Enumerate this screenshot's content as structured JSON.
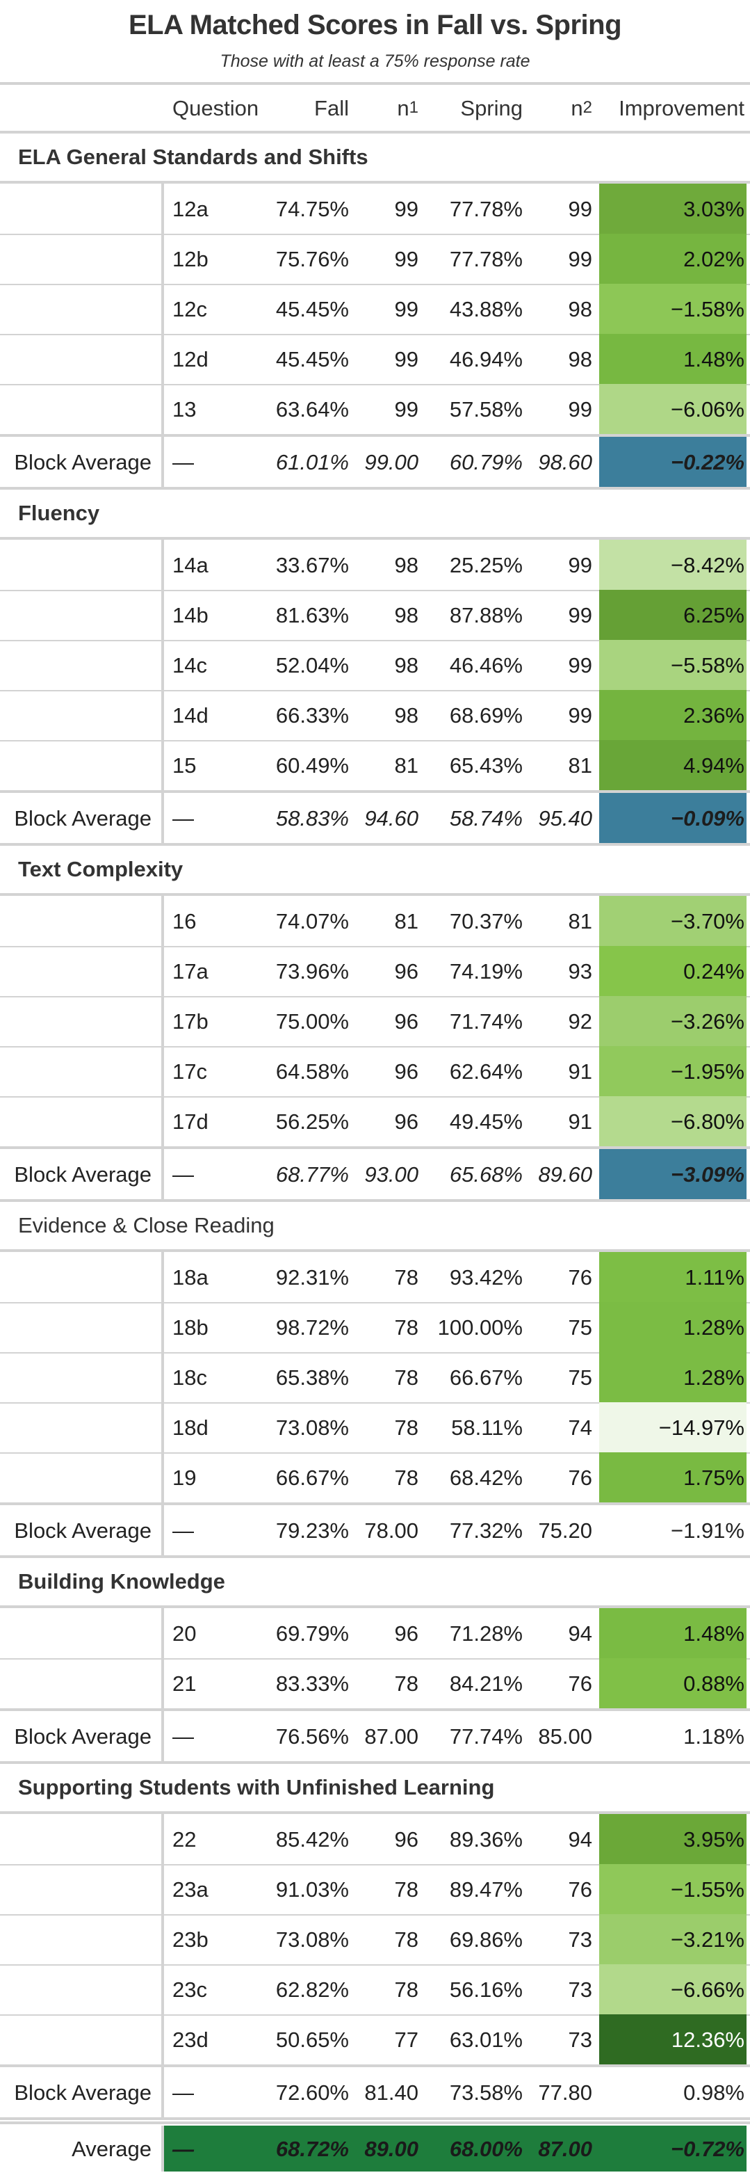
{
  "title": "ELA Matched Scores in Fall vs. Spring",
  "subtitle": "Those with at least a 75% response rate",
  "headers": {
    "question": "Question",
    "fall": "Fall",
    "n1_base": "n",
    "n1_sub": "1",
    "spring": "Spring",
    "n2_base": "n",
    "n2_sub": "2",
    "improvement": "Improvement"
  },
  "groups": [
    {
      "name": "ELA General Standards and Shifts",
      "bold": true,
      "rows": [
        {
          "question": "12a",
          "fall": "74.75%",
          "n1": "99",
          "spring": "77.78%",
          "n2": "99",
          "improvement": "3.03%",
          "color": "#6FAA3B",
          "text_color": "#111111"
        },
        {
          "question": "12b",
          "fall": "75.76%",
          "n1": "99",
          "spring": "77.78%",
          "n2": "99",
          "improvement": "2.02%",
          "color": "#76B540",
          "text_color": "#111111"
        },
        {
          "question": "12c",
          "fall": "45.45%",
          "n1": "99",
          "spring": "43.88%",
          "n2": "98",
          "improvement": "−1.58%",
          "color": "#8DC756",
          "text_color": "#111111"
        },
        {
          "question": "12d",
          "fall": "45.45%",
          "n1": "99",
          "spring": "46.94%",
          "n2": "98",
          "improvement": "1.48%",
          "color": "#77B841",
          "text_color": "#111111"
        },
        {
          "question": "13",
          "fall": "63.64%",
          "n1": "99",
          "spring": "57.58%",
          "n2": "99",
          "improvement": "−6.06%",
          "color": "#AFD787",
          "text_color": "#111111"
        }
      ],
      "avg": {
        "label": "Block Average",
        "question": "—",
        "fall": "61.01%",
        "n1": "99.00",
        "spring": "60.79%",
        "n2": "98.60",
        "improvement": "−0.22%",
        "color": "#3C7E9B",
        "text_color": "#1d1d1d",
        "style": "bi"
      }
    },
    {
      "name": "Fluency",
      "bold": true,
      "rows": [
        {
          "question": "14a",
          "fall": "33.67%",
          "n1": "98",
          "spring": "25.25%",
          "n2": "99",
          "improvement": "−8.42%",
          "color": "#C3E1A5",
          "text_color": "#111111"
        },
        {
          "question": "14b",
          "fall": "81.63%",
          "n1": "98",
          "spring": "87.88%",
          "n2": "99",
          "improvement": "6.25%",
          "color": "#65A035",
          "text_color": "#111111"
        },
        {
          "question": "14c",
          "fall": "52.04%",
          "n1": "98",
          "spring": "46.46%",
          "n2": "99",
          "improvement": "−5.58%",
          "color": "#A9D47F",
          "text_color": "#111111"
        },
        {
          "question": "14d",
          "fall": "66.33%",
          "n1": "98",
          "spring": "68.69%",
          "n2": "99",
          "improvement": "2.36%",
          "color": "#74B43F",
          "text_color": "#111111"
        },
        {
          "question": "15",
          "fall": "60.49%",
          "n1": "81",
          "spring": "65.43%",
          "n2": "81",
          "improvement": "4.94%",
          "color": "#69A638",
          "text_color": "#111111"
        }
      ],
      "avg": {
        "label": "Block Average",
        "question": "—",
        "fall": "58.83%",
        "n1": "94.60",
        "spring": "58.74%",
        "n2": "95.40",
        "improvement": "−0.09%",
        "color": "#3C7E9B",
        "text_color": "#1d1d1d",
        "style": "bi"
      }
    },
    {
      "name": "Text Complexity",
      "bold": true,
      "rows": [
        {
          "question": "16",
          "fall": "74.07%",
          "n1": "81",
          "spring": "70.37%",
          "n2": "81",
          "improvement": "−3.70%",
          "color": "#A1D074",
          "text_color": "#111111"
        },
        {
          "question": "17a",
          "fall": "73.96%",
          "n1": "96",
          "spring": "74.19%",
          "n2": "93",
          "improvement": "0.24%",
          "color": "#86C54A",
          "text_color": "#111111"
        },
        {
          "question": "17b",
          "fall": "75.00%",
          "n1": "96",
          "spring": "71.74%",
          "n2": "92",
          "improvement": "−3.26%",
          "color": "#9CCD6D",
          "text_color": "#111111"
        },
        {
          "question": "17c",
          "fall": "64.58%",
          "n1": "96",
          "spring": "62.64%",
          "n2": "91",
          "improvement": "−1.95%",
          "color": "#91C95C",
          "text_color": "#111111"
        },
        {
          "question": "17d",
          "fall": "56.25%",
          "n1": "96",
          "spring": "49.45%",
          "n2": "91",
          "improvement": "−6.80%",
          "color": "#B4DA8E",
          "text_color": "#111111"
        }
      ],
      "avg": {
        "label": "Block Average",
        "question": "—",
        "fall": "68.77%",
        "n1": "93.00",
        "spring": "65.68%",
        "n2": "89.60",
        "improvement": "−3.09%",
        "color": "#3C7E9B",
        "text_color": "#1d1d1d",
        "style": "bi"
      }
    },
    {
      "name": "Evidence & Close Reading",
      "bold": false,
      "rows": [
        {
          "question": "18a",
          "fall": "92.31%",
          "n1": "78",
          "spring": "93.42%",
          "n2": "76",
          "improvement": "1.11%",
          "color": "#7DBE45",
          "text_color": "#111111"
        },
        {
          "question": "18b",
          "fall": "98.72%",
          "n1": "78",
          "spring": "100.00%",
          "n2": "75",
          "improvement": "1.28%",
          "color": "#7BBC44",
          "text_color": "#111111"
        },
        {
          "question": "18c",
          "fall": "65.38%",
          "n1": "78",
          "spring": "66.67%",
          "n2": "75",
          "improvement": "1.28%",
          "color": "#7BBC44",
          "text_color": "#111111"
        },
        {
          "question": "18d",
          "fall": "73.08%",
          "n1": "78",
          "spring": "58.11%",
          "n2": "74",
          "improvement": "−14.97%",
          "color": "#EFF7E8",
          "text_color": "#111111"
        },
        {
          "question": "19",
          "fall": "66.67%",
          "n1": "78",
          "spring": "68.42%",
          "n2": "76",
          "improvement": "1.75%",
          "color": "#79BA42",
          "text_color": "#111111"
        }
      ],
      "avg": {
        "label": "Block Average",
        "question": "—",
        "fall": "79.23%",
        "n1": "78.00",
        "spring": "77.32%",
        "n2": "75.20",
        "improvement": "−1.91%",
        "color": "#ffffff",
        "text_color": "#222222",
        "style": "plain"
      }
    },
    {
      "name": "Building Knowledge",
      "bold": true,
      "rows": [
        {
          "question": "20",
          "fall": "69.79%",
          "n1": "96",
          "spring": "71.28%",
          "n2": "94",
          "improvement": "1.48%",
          "color": "#7ABB43",
          "text_color": "#111111"
        },
        {
          "question": "21",
          "fall": "83.33%",
          "n1": "78",
          "spring": "84.21%",
          "n2": "76",
          "improvement": "0.88%",
          "color": "#80C047",
          "text_color": "#111111"
        }
      ],
      "avg": {
        "label": "Block Average",
        "question": "—",
        "fall": "76.56%",
        "n1": "87.00",
        "spring": "77.74%",
        "n2": "85.00",
        "improvement": "1.18%",
        "color": "#ffffff",
        "text_color": "#222222",
        "style": "plain"
      }
    },
    {
      "name": "Supporting Students with Unfinished Learning",
      "bold": true,
      "rows": [
        {
          "question": "22",
          "fall": "85.42%",
          "n1": "96",
          "spring": "89.36%",
          "n2": "94",
          "improvement": "3.95%",
          "color": "#6BA838",
          "text_color": "#111111"
        },
        {
          "question": "23a",
          "fall": "91.03%",
          "n1": "78",
          "spring": "89.47%",
          "n2": "76",
          "improvement": "−1.55%",
          "color": "#8FC859",
          "text_color": "#111111"
        },
        {
          "question": "23b",
          "fall": "73.08%",
          "n1": "78",
          "spring": "69.86%",
          "n2": "73",
          "improvement": "−3.21%",
          "color": "#9BCD6B",
          "text_color": "#111111"
        },
        {
          "question": "23c",
          "fall": "62.82%",
          "n1": "78",
          "spring": "56.16%",
          "n2": "73",
          "improvement": "−6.66%",
          "color": "#B2D98B",
          "text_color": "#111111"
        },
        {
          "question": "23d",
          "fall": "50.65%",
          "n1": "77",
          "spring": "63.01%",
          "n2": "73",
          "improvement": "12.36%",
          "color": "#2F6B22",
          "text_color": "#ffffff"
        }
      ],
      "avg": {
        "label": "Block Average",
        "question": "—",
        "fall": "72.60%",
        "n1": "81.40",
        "spring": "73.58%",
        "n2": "77.80",
        "improvement": "0.98%",
        "color": "#ffffff",
        "text_color": "#222222",
        "style": "plain"
      }
    }
  ],
  "grand": {
    "label": "Average",
    "question": "—",
    "fall": "68.72%",
    "n1": "89.00",
    "spring": "68.00%",
    "n2": "87.00",
    "improvement": "−0.72%",
    "color": "#1E7D3C",
    "text_color": "#1a1a1a"
  }
}
